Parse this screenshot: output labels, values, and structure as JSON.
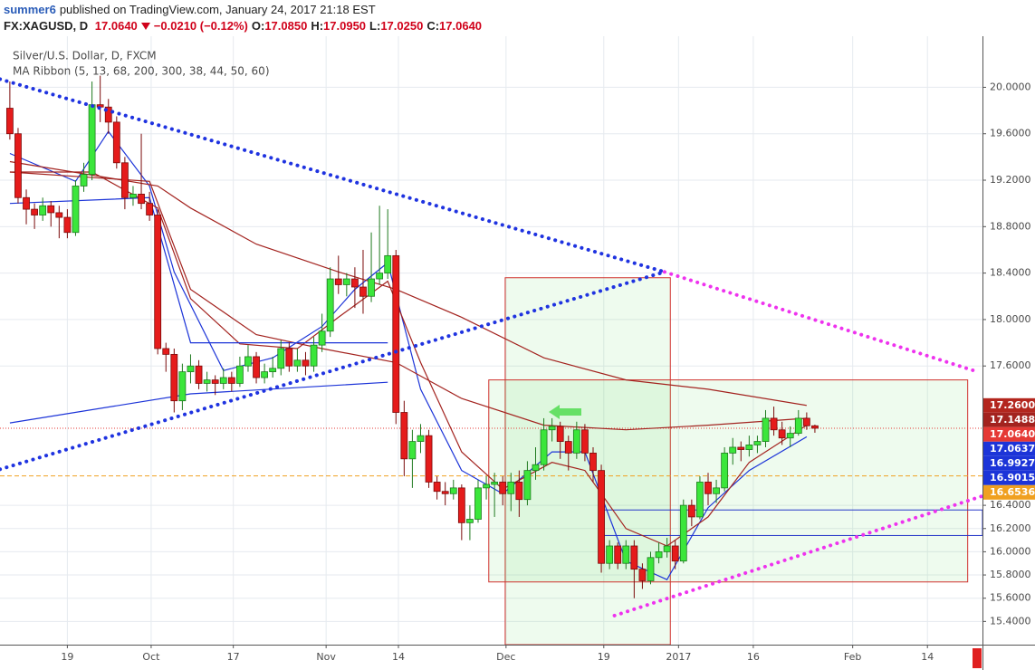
{
  "header": {
    "user": "summer6",
    "published": "published on TradingView.com, January 24, 2017 21:18 EST",
    "symbol": "FX:XAGUSD, D",
    "last": "17.0640",
    "change": "−0.0210 (−0.12%)",
    "ohlc": [
      {
        "key": "O:",
        "value": "17.0850"
      },
      {
        "key": "H:",
        "value": "17.0950"
      },
      {
        "key": "L:",
        "value": "17.0250"
      },
      {
        "key": "C:",
        "value": "17.0640"
      }
    ]
  },
  "chart_data": {
    "type": "candlestick",
    "title": "Silver/U.S. Dollar, D, FXCM",
    "subtitle": "MA Ribbon (5, 13, 68, 200, 300, 38, 44, 50, 60)",
    "up_color": "#3be63b",
    "up_border": "#1f7a1f",
    "down_color": "#e51b1b",
    "down_border": "#7a0a0a",
    "open": [
      19.82,
      19.6,
      19.05,
      18.95,
      18.9,
      18.98,
      18.92,
      18.88,
      18.75,
      19.15,
      19.25,
      19.85,
      19.83,
      19.7,
      19.35,
      19.05,
      19.08,
      19.0,
      18.9,
      17.75,
      17.7,
      17.3,
      17.55,
      17.6,
      17.45,
      17.48,
      17.45,
      17.5,
      17.45,
      17.6,
      17.68,
      17.5,
      17.55,
      17.58,
      17.75,
      17.6,
      17.65,
      17.6,
      17.78,
      17.9,
      18.35,
      18.3,
      18.35,
      18.28,
      18.2,
      18.35,
      18.4,
      18.55,
      17.2,
      16.8,
      16.95,
      17.0,
      16.6,
      16.52,
      16.5,
      16.55,
      16.25,
      16.28,
      16.55,
      16.58,
      16.6,
      16.5,
      16.6,
      16.45,
      16.7,
      16.75,
      17.05,
      17.08,
      16.95,
      16.85,
      17.05,
      16.85,
      16.7,
      15.9,
      16.05,
      15.9,
      16.05,
      15.85,
      15.75,
      15.95,
      16.0,
      16.05,
      15.92,
      16.4,
      16.3,
      16.6,
      16.5,
      16.55,
      16.85,
      16.9,
      16.88,
      16.92,
      16.95,
      17.15,
      17.05,
      16.98,
      17.02,
      17.15,
      17.085
    ],
    "high": [
      20.05,
      19.65,
      19.12,
      19.0,
      19.05,
      19.02,
      18.98,
      18.95,
      19.2,
      19.35,
      20.05,
      20.1,
      19.9,
      19.75,
      19.4,
      19.15,
      19.6,
      19.1,
      18.95,
      17.8,
      17.75,
      17.62,
      17.7,
      17.65,
      17.55,
      17.52,
      17.58,
      17.55,
      17.68,
      17.78,
      17.72,
      17.62,
      17.68,
      17.82,
      17.8,
      17.75,
      17.72,
      17.85,
      18.05,
      18.45,
      18.55,
      18.4,
      18.45,
      18.6,
      18.75,
      18.98,
      18.95,
      18.6,
      17.3,
      17.05,
      17.1,
      17.05,
      16.65,
      16.6,
      16.62,
      16.58,
      16.4,
      16.62,
      16.65,
      16.68,
      16.65,
      16.68,
      16.7,
      16.78,
      16.9,
      17.15,
      17.15,
      17.12,
      17.0,
      17.12,
      17.1,
      16.9,
      16.75,
      16.1,
      16.08,
      16.1,
      16.1,
      15.9,
      16.0,
      16.08,
      16.12,
      16.1,
      16.45,
      16.45,
      16.65,
      16.68,
      16.62,
      16.9,
      16.98,
      16.95,
      17.0,
      17.0,
      17.22,
      17.25,
      17.12,
      17.08,
      17.22,
      17.2,
      17.095
    ],
    "low": [
      19.55,
      19.0,
      18.82,
      18.78,
      18.85,
      18.8,
      18.7,
      18.7,
      18.72,
      19.1,
      19.2,
      19.7,
      19.6,
      19.3,
      18.95,
      18.98,
      18.95,
      18.85,
      17.7,
      17.55,
      17.2,
      17.22,
      17.45,
      17.4,
      17.38,
      17.35,
      17.4,
      17.38,
      17.42,
      17.55,
      17.45,
      17.45,
      17.5,
      17.52,
      17.55,
      17.55,
      17.52,
      17.55,
      17.72,
      17.85,
      18.22,
      18.2,
      18.1,
      18.05,
      18.15,
      18.3,
      18.35,
      17.1,
      16.65,
      16.55,
      16.85,
      16.55,
      16.45,
      16.4,
      16.45,
      16.1,
      16.1,
      16.25,
      16.45,
      16.3,
      16.4,
      16.35,
      16.3,
      16.4,
      16.62,
      16.7,
      16.95,
      16.8,
      16.7,
      16.8,
      16.78,
      16.6,
      15.82,
      15.85,
      15.85,
      15.85,
      15.6,
      15.68,
      15.72,
      15.9,
      15.95,
      15.85,
      15.9,
      16.22,
      16.28,
      16.4,
      16.42,
      16.52,
      16.75,
      16.78,
      16.82,
      16.85,
      16.9,
      17.0,
      16.92,
      16.9,
      17.0,
      17.05,
      17.025
    ],
    "close": [
      19.6,
      19.05,
      18.95,
      18.9,
      18.98,
      18.92,
      18.88,
      18.75,
      19.15,
      19.25,
      19.85,
      19.83,
      19.7,
      19.35,
      19.05,
      19.08,
      19.0,
      18.9,
      17.75,
      17.7,
      17.3,
      17.55,
      17.6,
      17.45,
      17.48,
      17.45,
      17.5,
      17.45,
      17.6,
      17.68,
      17.5,
      17.55,
      17.58,
      17.75,
      17.6,
      17.65,
      17.6,
      17.78,
      17.9,
      18.35,
      18.3,
      18.35,
      18.28,
      18.2,
      18.35,
      18.4,
      18.55,
      17.2,
      16.8,
      16.95,
      17.0,
      16.6,
      16.52,
      16.5,
      16.55,
      16.25,
      16.28,
      16.55,
      16.58,
      16.6,
      16.5,
      16.6,
      16.45,
      16.7,
      16.75,
      17.05,
      17.08,
      16.95,
      16.85,
      17.05,
      16.85,
      16.7,
      15.9,
      16.05,
      15.9,
      16.05,
      15.85,
      15.75,
      15.95,
      16.0,
      16.05,
      15.92,
      16.4,
      16.3,
      16.6,
      16.5,
      16.55,
      16.85,
      16.9,
      16.88,
      16.92,
      16.95,
      17.15,
      17.05,
      16.98,
      17.02,
      17.15,
      17.085,
      17.064
    ],
    "series": [
      {
        "color": "#1c34d8",
        "x": [
          0,
          8,
          12,
          17,
          20,
          26,
          32,
          38,
          42,
          46,
          50,
          55,
          60,
          66,
          70,
          75,
          80,
          85,
          90,
          97
        ],
        "values": [
          19.43,
          19.19,
          19.62,
          19.15,
          18.41,
          17.56,
          17.67,
          17.94,
          18.26,
          18.49,
          17.4,
          16.7,
          16.5,
          16.86,
          16.86,
          15.92,
          15.76,
          16.38,
          16.7,
          16.99
        ]
      },
      {
        "color": "#a3231f",
        "x": [
          0,
          10,
          18,
          22,
          28,
          35,
          40,
          46,
          50,
          55,
          60,
          66,
          70,
          75,
          80,
          85,
          90,
          97
        ],
        "values": [
          19.27,
          19.27,
          18.96,
          18.18,
          17.79,
          17.75,
          18.02,
          18.33,
          17.63,
          16.86,
          16.54,
          16.77,
          16.7,
          16.2,
          16.05,
          16.3,
          16.77,
          17.09
        ]
      },
      {
        "color": "#a3231f",
        "x": [
          0,
          18,
          22,
          30,
          40,
          47,
          55,
          65,
          75,
          85,
          97
        ],
        "values": [
          19.36,
          19.15,
          18.96,
          18.65,
          18.41,
          18.26,
          18.02,
          17.67,
          17.48,
          17.4,
          17.26
        ]
      },
      {
        "color": "#a3231f",
        "x": [
          0,
          17,
          22,
          30,
          38,
          47,
          55,
          65,
          75,
          85,
          97
        ],
        "values": [
          19.27,
          19.19,
          18.26,
          17.87,
          17.75,
          17.63,
          17.32,
          17.09,
          17.05,
          17.09,
          17.15
        ]
      },
      {
        "color": "#1c34d8",
        "x": [
          0,
          17,
          22,
          46
        ],
        "values": [
          19.0,
          19.05,
          17.8,
          17.8
        ]
      },
      {
        "color": "#1c34d8",
        "x": [
          0,
          22,
          46
        ],
        "values": [
          17.11,
          17.36,
          17.46
        ]
      }
    ],
    "trendlines": [
      {
        "color": "#1f33e0",
        "x": [
          -1.2,
          79.7
        ],
        "values": [
          20.07,
          18.41
        ]
      },
      {
        "color": "#ee33ee",
        "x": [
          79.7,
          117.8
        ],
        "values": [
          18.41,
          17.55
        ]
      },
      {
        "color": "#1f33e0",
        "x": [
          -1.2,
          79.7
        ],
        "values": [
          16.71,
          18.41
        ]
      },
      {
        "color": "#ee33ee",
        "x": [
          73.6,
          118.4
        ],
        "values": [
          15.45,
          16.48
        ]
      }
    ],
    "rects": [
      {
        "color": "#d0312d",
        "fill": "rgba(90,220,90,0.10)",
        "x": [
          60.3,
          80.4
        ],
        "values": [
          18.36,
          15.2
        ]
      },
      {
        "color": "#d0312d",
        "fill": "rgba(90,220,90,0.10)",
        "x": [
          58.3,
          116.6
        ],
        "values": [
          17.48,
          15.74
        ]
      },
      {
        "color": "#2436c8",
        "fill": "none",
        "x": [
          72.2,
          118.4
        ],
        "values": [
          16.36,
          16.14
        ]
      }
    ],
    "price_labels": [
      {
        "value": 17.26,
        "label": "17.2600",
        "color": "#b3261e"
      },
      {
        "value": 17.1488,
        "label": "17.1488",
        "color": "#a3231f"
      },
      {
        "value": 17.064,
        "label": "17.0640",
        "color": "#e53935",
        "line": "dotted"
      },
      {
        "value": 17.0637,
        "label": "17.0637",
        "color": "#1c34d8"
      },
      {
        "value": 16.9927,
        "label": "16.9927",
        "color": "#1c34d8"
      },
      {
        "value": 16.9015,
        "label": "16.9015",
        "color": "#1c34d8"
      },
      {
        "value": 16.6536,
        "label": "16.6536",
        "color": "#f0a020",
        "line": "dashed"
      }
    ],
    "xlim": [
      -1.2,
      118.4
    ],
    "ylim": [
      15.2,
      20.44
    ],
    "xticks": [
      {
        "value": 7,
        "label": "19"
      },
      {
        "value": 17.2,
        "label": "Oct"
      },
      {
        "value": 27.2,
        "label": "17"
      },
      {
        "value": 38.5,
        "label": "Nov"
      },
      {
        "value": 47.3,
        "label": "14"
      },
      {
        "value": 60.4,
        "label": "Dec"
      },
      {
        "value": 72.3,
        "label": "19"
      },
      {
        "value": 81.4,
        "label": "2017"
      },
      {
        "value": 90.5,
        "label": "16"
      },
      {
        "value": 102.6,
        "label": "Feb"
      },
      {
        "value": 111.7,
        "label": "14"
      }
    ],
    "yticks": [
      {
        "value": 20.0,
        "label": "20.0000"
      },
      {
        "value": 19.6,
        "label": "19.6000"
      },
      {
        "value": 19.2,
        "label": "19.2000"
      },
      {
        "value": 18.8,
        "label": "18.8000"
      },
      {
        "value": 18.4,
        "label": "18.4000"
      },
      {
        "value": 18.0,
        "label": "18.0000"
      },
      {
        "value": 17.6,
        "label": "17.6000"
      },
      {
        "value": 16.4,
        "label": "16.4000"
      },
      {
        "value": 16.2,
        "label": "16.2000"
      },
      {
        "value": 16.0,
        "label": "16.0000"
      },
      {
        "value": 15.8,
        "label": "15.8000"
      },
      {
        "value": 15.6,
        "label": "15.6000"
      },
      {
        "value": 15.4,
        "label": "15.4000"
      }
    ],
    "grid": true
  }
}
